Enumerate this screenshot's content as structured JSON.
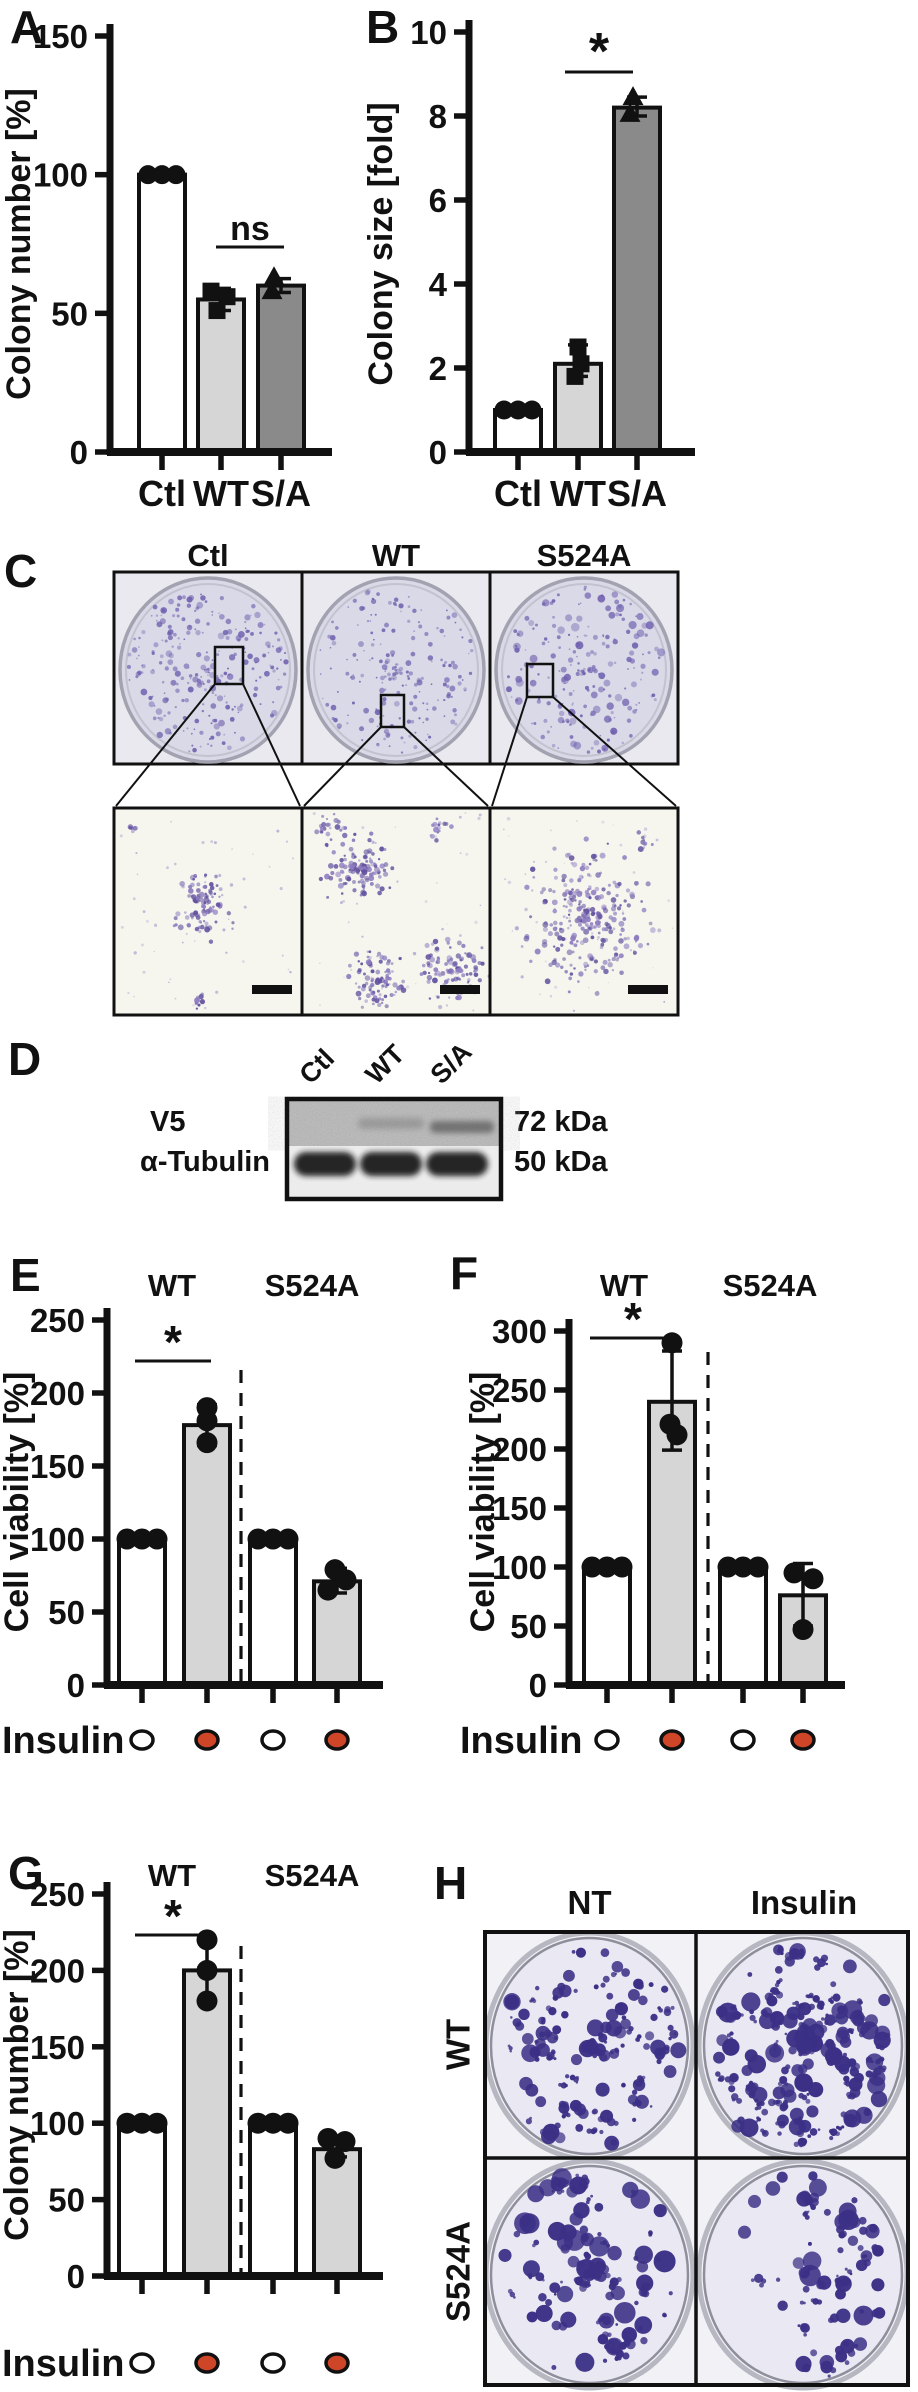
{
  "colors": {
    "ink": "#111111",
    "bar_white": "#ffffff",
    "bar_light_gray": "#d6d6d6",
    "bar_dark_gray": "#8a8a8a",
    "insulin_filled": "#cf4527",
    "insulin_open": "#ffffff",
    "dish_panel_bg": "#e9e9ef",
    "dish_fill": "#d9d9e7",
    "colony_small": "#6f5fae",
    "zoom_bg": "#f6f6ee",
    "colony_zoom_a": "#8d7cc0",
    "colony_zoom_b": "#63519f",
    "h_cell_bg": "#f2f1f6",
    "h_dish_fill": "#eae8f3",
    "colony_dense": "#3b3086"
  },
  "panel_letters": {
    "A": "A",
    "B": "B",
    "C": "C",
    "D": "D",
    "E": "E",
    "F": "F",
    "G": "G",
    "H": "H"
  },
  "panel_c": {
    "headers": [
      "Ctl",
      "WT",
      "S524A"
    ]
  },
  "panel_d": {
    "lanes": [
      "Ctl",
      "WT",
      "S/A"
    ],
    "blot_rows": [
      {
        "antibody": "V5",
        "size": "72 kDa"
      },
      {
        "antibody": "α-Tubulin",
        "size": "50 kDa"
      }
    ]
  },
  "panel_h": {
    "col_headers": [
      "NT",
      "Insulin"
    ],
    "row_labels": [
      "WT",
      "S524A"
    ]
  },
  "chart_data": [
    {
      "panel": "A",
      "type": "bar",
      "title": "",
      "xlabel": "",
      "ylabel": "Colony number [%]",
      "ylim": [
        0,
        150
      ],
      "yticks": [
        0,
        50,
        100,
        150
      ],
      "grid": false,
      "categories": [
        "Ctl",
        "WT",
        "S/A"
      ],
      "values": [
        100,
        55,
        60
      ],
      "bar_colors": [
        "white",
        "light",
        "dark"
      ],
      "point_shapes": [
        "circle",
        "square",
        "triangle"
      ],
      "points": [
        [
          100,
          100,
          100
        ],
        [
          58,
          56,
          51
        ],
        [
          63,
          58
        ]
      ],
      "point_dx": [
        [
          -14,
          0,
          14
        ],
        [
          -10,
          6,
          -4
        ],
        [
          -7,
          -9
        ]
      ],
      "errors": [
        null,
        [
          51,
          59
        ],
        [
          57.5,
          62.5
        ]
      ],
      "significance": {
        "label": "ns",
        "between": [
          "WT",
          "S/A"
        ]
      }
    },
    {
      "panel": "B",
      "type": "bar",
      "title": "",
      "xlabel": "",
      "ylabel": "Colony size [fold]",
      "ylim": [
        0,
        10
      ],
      "yticks": [
        0,
        2,
        4,
        6,
        8,
        10
      ],
      "grid": false,
      "categories": [
        "Ctl",
        "WT",
        "S/A"
      ],
      "values": [
        1,
        2.1,
        8.2
      ],
      "bar_colors": [
        "white",
        "light",
        "dark"
      ],
      "point_shapes": [
        "circle",
        "square",
        "triangle"
      ],
      "points": [
        [
          1,
          1,
          1
        ],
        [
          2.5,
          2.1,
          1.8
        ],
        [
          8.45,
          8.05
        ]
      ],
      "point_dx": [
        [
          -14,
          0,
          14
        ],
        [
          0,
          3,
          -3
        ],
        [
          -4,
          -7
        ]
      ],
      "errors": [
        null,
        [
          1.8,
          2.55
        ],
        [
          8.0,
          8.45
        ]
      ],
      "significance": {
        "label": "*",
        "between": [
          "WT",
          "S/A"
        ]
      }
    },
    {
      "panel": "E",
      "type": "bar",
      "title": "",
      "xlabel": "Insulin",
      "ylabel": "Cell viability [%]",
      "ylim": [
        0,
        250
      ],
      "yticks": [
        0,
        50,
        100,
        150,
        200,
        250
      ],
      "grid": false,
      "group_headers": [
        "WT",
        "S524A"
      ],
      "categories": [
        "WT NT",
        "WT Insulin",
        "S524A NT",
        "S524A Insulin"
      ],
      "insulin_row": [
        false,
        true,
        false,
        true
      ],
      "values": [
        100,
        178,
        100,
        71
      ],
      "bar_colors": [
        "white",
        "light",
        "white",
        "light"
      ],
      "point_shapes": [
        "circle",
        "circle",
        "circle",
        "circle"
      ],
      "points": [
        [
          100,
          100,
          100
        ],
        [
          190,
          181,
          166
        ],
        [
          100,
          100,
          100
        ],
        [
          79,
          72,
          65
        ]
      ],
      "point_dx": [
        [
          -15,
          0,
          15
        ],
        [
          0,
          0,
          0
        ],
        [
          -15,
          0,
          15
        ],
        [
          -2,
          9,
          -9
        ]
      ],
      "errors": [
        null,
        [
          164,
          192
        ],
        null,
        [
          63,
          80
        ]
      ],
      "significance": {
        "label": "*",
        "between": [
          0,
          1
        ]
      },
      "separator_after_index": 1
    },
    {
      "panel": "F",
      "type": "bar",
      "title": "",
      "xlabel": "Insulin",
      "ylabel": "Cell viability [%]",
      "ylim": [
        0,
        300
      ],
      "yticks": [
        0,
        50,
        100,
        150,
        200,
        250,
        300
      ],
      "grid": false,
      "group_headers": [
        "WT",
        "S524A"
      ],
      "categories": [
        "WT NT",
        "WT Insulin",
        "S524A NT",
        "S524A Insulin"
      ],
      "insulin_row": [
        false,
        true,
        false,
        true
      ],
      "values": [
        100,
        240,
        100,
        76
      ],
      "bar_colors": [
        "white",
        "light",
        "white",
        "light"
      ],
      "point_shapes": [
        "circle",
        "circle",
        "circle",
        "circle"
      ],
      "points": [
        [
          100,
          100,
          100
        ],
        [
          290,
          221,
          212
        ],
        [
          100,
          100,
          100
        ],
        [
          95,
          90,
          47
        ]
      ],
      "point_dx": [
        [
          -15,
          0,
          15
        ],
        [
          0,
          -2,
          5
        ],
        [
          -15,
          0,
          15
        ],
        [
          -9,
          10,
          0
        ]
      ],
      "errors": [
        null,
        [
          199,
          283
        ],
        null,
        [
          50,
          103
        ]
      ],
      "significance": {
        "label": "*",
        "between": [
          0,
          1
        ]
      },
      "separator_after_index": 1
    },
    {
      "panel": "G",
      "type": "bar",
      "title": "",
      "xlabel": "Insulin",
      "ylabel": "Colony number [%]",
      "ylim": [
        0,
        250
      ],
      "yticks": [
        0,
        50,
        100,
        150,
        200,
        250
      ],
      "grid": false,
      "group_headers": [
        "WT",
        "S524A"
      ],
      "categories": [
        "WT NT",
        "WT Insulin",
        "S524A NT",
        "S524A Insulin"
      ],
      "insulin_row": [
        false,
        true,
        false,
        true
      ],
      "values": [
        100,
        200,
        100,
        83
      ],
      "bar_colors": [
        "white",
        "light",
        "white",
        "light"
      ],
      "point_shapes": [
        "circle",
        "circle",
        "circle",
        "circle"
      ],
      "points": [
        [
          100,
          100,
          100
        ],
        [
          220,
          200,
          180
        ],
        [
          100,
          100,
          100
        ],
        [
          90,
          88,
          77
        ]
      ],
      "point_dx": [
        [
          -15,
          0,
          15
        ],
        [
          0,
          0,
          0
        ],
        [
          -15,
          0,
          15
        ],
        [
          -9,
          8,
          -2
        ]
      ],
      "errors": [
        null,
        [
          180,
          220
        ],
        null,
        [
          78,
          89
        ]
      ],
      "significance": {
        "label": "*",
        "between": [
          0,
          1
        ]
      },
      "separator_after_index": 1
    }
  ]
}
